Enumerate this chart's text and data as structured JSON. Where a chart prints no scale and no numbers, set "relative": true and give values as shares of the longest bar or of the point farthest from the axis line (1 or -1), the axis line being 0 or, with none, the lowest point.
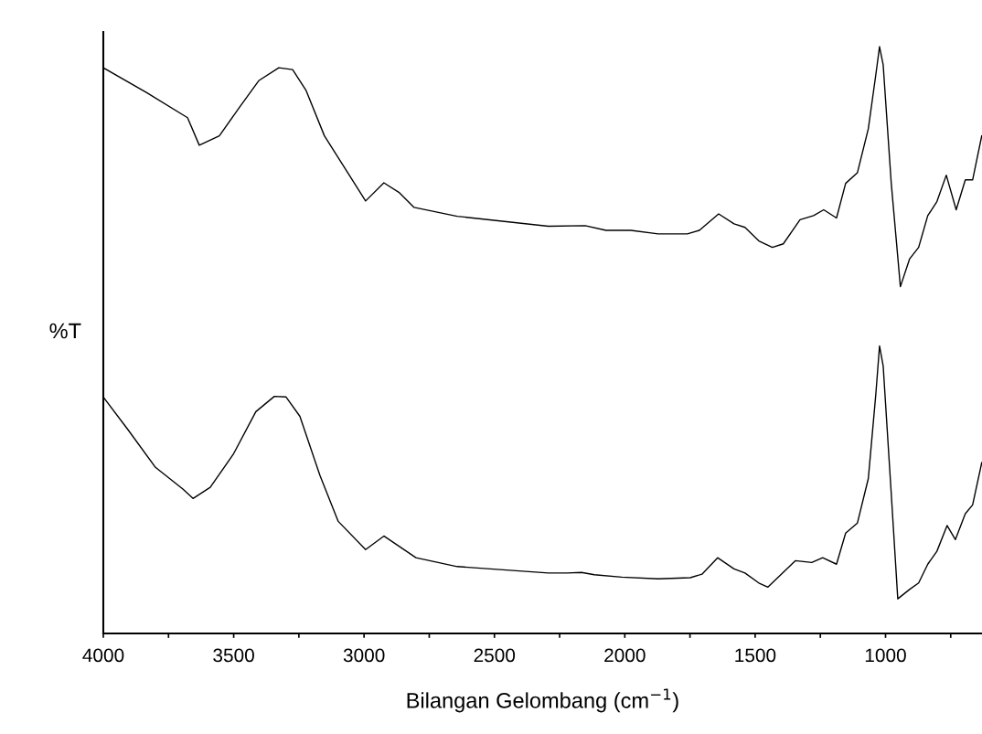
{
  "chart_data": {
    "type": "line",
    "relative": true,
    "ylabel": "%T",
    "xlabel": "Bilangan Gelombang (cm$^{−1}$)",
    "xlim": [
      4000,
      630
    ],
    "xticks": [
      4000,
      {
        "value": 3750,
        "label": null
      },
      3500,
      {
        "value": 3250,
        "label": null
      },
      3000,
      {
        "value": 2750,
        "label": null
      },
      2500,
      {
        "value": 2250,
        "label": null
      },
      2000,
      {
        "value": 1750,
        "label": null
      },
      1500,
      {
        "value": 1250,
        "label": null
      },
      1000,
      {
        "value": 750,
        "label": null
      }
    ],
    "tick_labels": "x",
    "grid": false,
    "line_style": "solid",
    "marker": "none",
    "series": [
      {
        "color": "#000000",
        "x": [
          4000,
          3835,
          3677,
          3632,
          3555,
          3474,
          3404,
          3327,
          3274,
          3222,
          3152,
          3081,
          2994,
          2924,
          2864,
          2808,
          2643,
          2293,
          2152,
          2072,
          1977,
          1872,
          1760,
          1714,
          1640,
          1581,
          1539,
          1486,
          1434,
          1392,
          1328,
          1276,
          1237,
          1188,
          1153,
          1108,
          1066,
          1037,
          1023,
          1009,
          978,
          943,
          908,
          873,
          838,
          803,
          767,
          729,
          694,
          666,
          631
        ],
        "values": [
          0.964,
          0.922,
          0.879,
          0.832,
          0.848,
          0.899,
          0.942,
          0.964,
          0.961,
          0.925,
          0.848,
          0.798,
          0.737,
          0.768,
          0.751,
          0.726,
          0.711,
          0.694,
          0.695,
          0.687,
          0.687,
          0.681,
          0.681,
          0.687,
          0.715,
          0.698,
          0.692,
          0.669,
          0.658,
          0.664,
          0.705,
          0.712,
          0.722,
          0.708,
          0.767,
          0.785,
          0.86,
          0.953,
          1,
          0.969,
          0.767,
          0.591,
          0.638,
          0.658,
          0.712,
          0.736,
          0.781,
          0.722,
          0.773,
          0.773,
          0.848
        ]
      },
      {
        "color": "#000000",
        "x": [
          4000,
          3905,
          3800,
          3695,
          3656,
          3590,
          3502,
          3415,
          3344,
          3299,
          3246,
          3169,
          3099,
          2994,
          2924,
          2854,
          2801,
          2643,
          2293,
          2222,
          2166,
          2117,
          2012,
          1872,
          1749,
          1704,
          1644,
          1581,
          1539,
          1486,
          1451,
          1346,
          1283,
          1241,
          1188,
          1153,
          1108,
          1066,
          1037,
          1023,
          1009,
          978,
          953,
          908,
          873,
          838,
          803,
          764,
          732,
          694,
          666,
          631
        ],
        "values": [
          0.403,
          0.347,
          0.283,
          0.246,
          0.23,
          0.249,
          0.305,
          0.378,
          0.404,
          0.403,
          0.37,
          0.269,
          0.191,
          0.143,
          0.166,
          0.145,
          0.129,
          0.114,
          0.103,
          0.103,
          0.104,
          0.1,
          0.096,
          0.093,
          0.095,
          0.101,
          0.129,
          0.11,
          0.103,
          0.086,
          0.079,
          0.124,
          0.121,
          0.129,
          0.118,
          0.171,
          0.188,
          0.264,
          0.409,
          0.49,
          0.456,
          0.238,
          0.059,
          0.075,
          0.086,
          0.118,
          0.14,
          0.184,
          0.16,
          0.204,
          0.219,
          0.291
        ]
      }
    ]
  }
}
